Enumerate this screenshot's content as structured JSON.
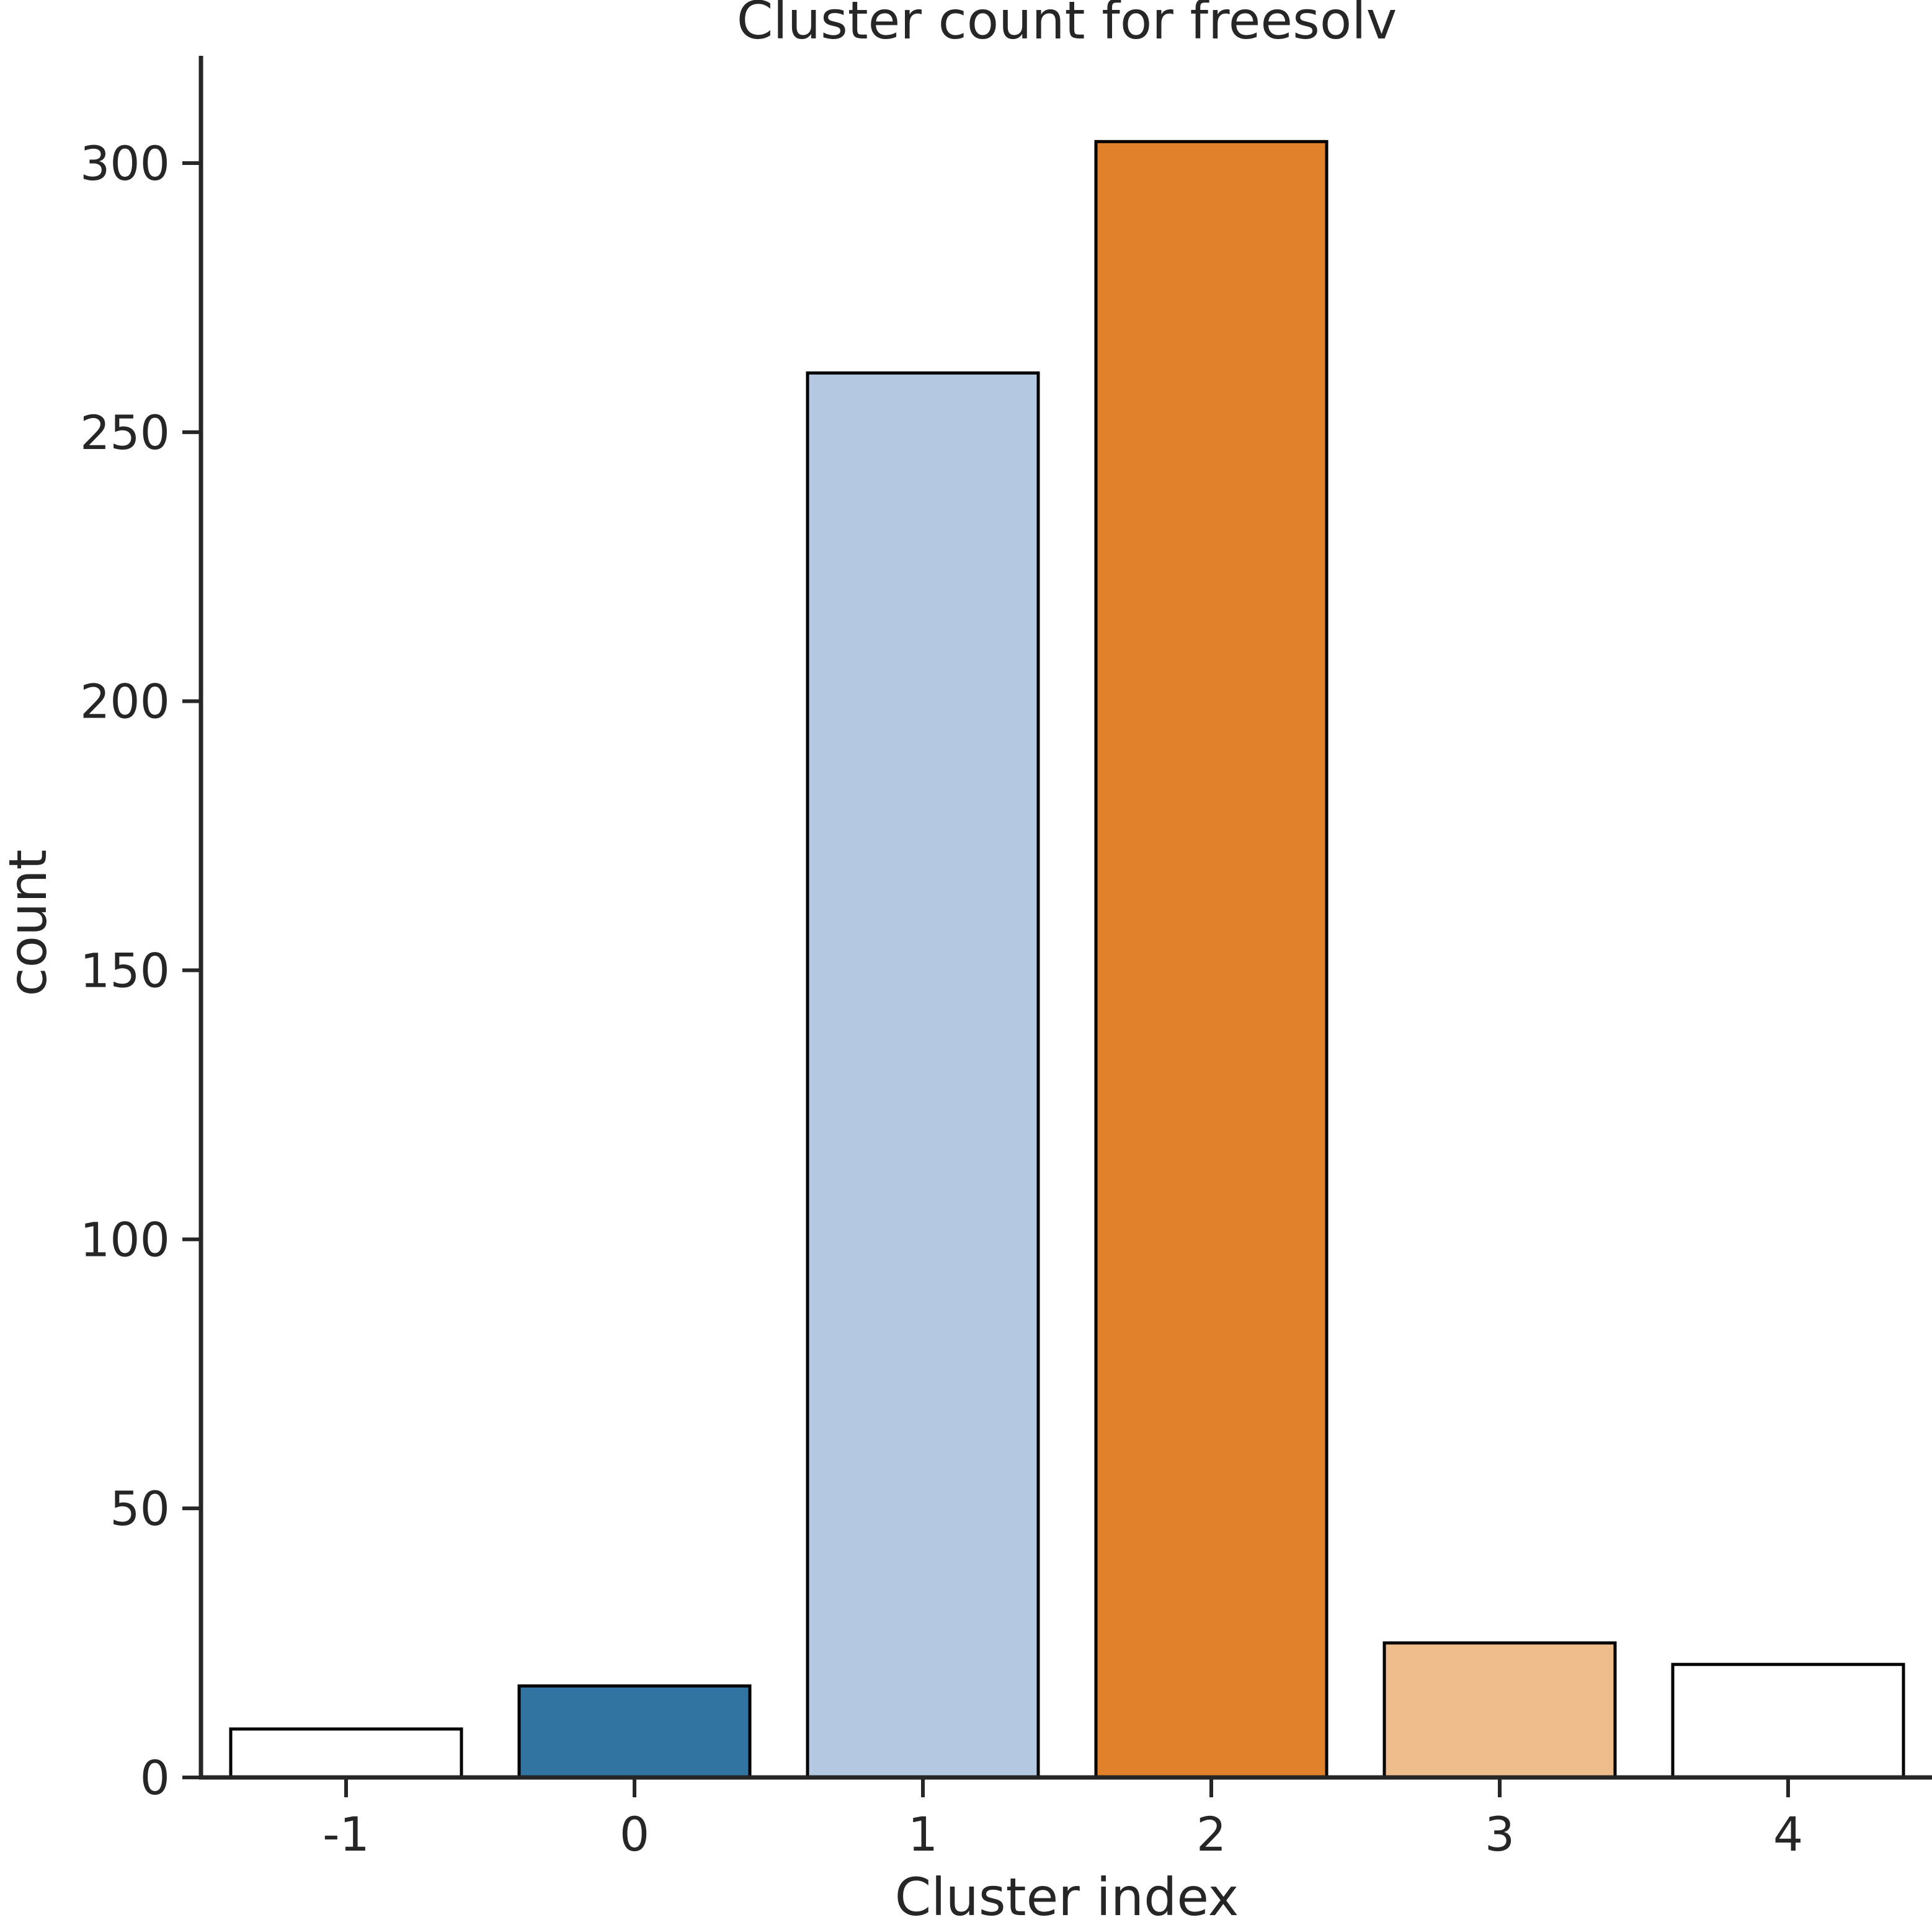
{
  "chart_data": {
    "type": "bar",
    "title": "Cluster count for freesolv",
    "xlabel": "Cluster index",
    "ylabel": "count",
    "categories": [
      "-1",
      "0",
      "1",
      "2",
      "3",
      "4"
    ],
    "values": [
      9,
      17,
      261,
      304,
      25,
      21
    ],
    "colors": [
      "#ffffff",
      "#3274a1",
      "#b5c8e1",
      "#e1812c",
      "#efbc8c",
      "#ffffff"
    ],
    "yticks": [
      0,
      50,
      100,
      150,
      200,
      250,
      300
    ],
    "ylim": [
      0,
      320
    ],
    "grid": false
  }
}
